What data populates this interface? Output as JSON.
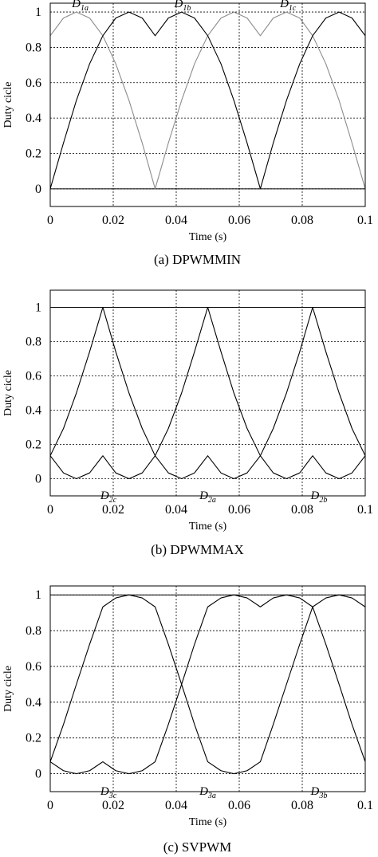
{
  "figure": {
    "ylabel": "Duty cicle",
    "xlabel": "Time (s)"
  },
  "chart_data": [
    {
      "type": "line",
      "caption": "(a) DPWMMIN",
      "xlabel": "Time (s)",
      "ylabel": "Duty cicle",
      "xlim": [
        0,
        0.1
      ],
      "ylim": [
        -0.1,
        1.05
      ],
      "xticks": [
        "0",
        "0.02",
        "0.04",
        "0.06",
        "0.08",
        "0.1"
      ],
      "yticks": [
        "0",
        "0.2",
        "0.4",
        "0.6",
        "0.8",
        "1"
      ],
      "grid": true,
      "reference_line": 0,
      "colors": [
        "#8c8c8c",
        "#000000",
        "#000000"
      ],
      "series": [
        {
          "name": "D1a",
          "sub": "1a",
          "label_at": [
            0.0095,
            1.0
          ],
          "points": [
            [
              0,
              0.866
            ],
            [
              0.0042,
              0.966
            ],
            [
              0.0083,
              1.0
            ],
            [
              0.0125,
              0.966
            ],
            [
              0.0167,
              0.866
            ],
            [
              0.0208,
              0.707
            ],
            [
              0.025,
              0.5
            ],
            [
              0.0292,
              0.259
            ],
            [
              0.0333,
              0.0
            ],
            [
              0.0375,
              0.259
            ],
            [
              0.0417,
              0.5
            ],
            [
              0.0458,
              0.707
            ],
            [
              0.05,
              0.866
            ],
            [
              0.0542,
              0.966
            ],
            [
              0.0583,
              1.0
            ],
            [
              0.0625,
              0.966
            ],
            [
              0.0667,
              0.866
            ],
            [
              0.0708,
              0.966
            ],
            [
              0.075,
              1.0
            ],
            [
              0.0792,
              0.966
            ],
            [
              0.0833,
              0.866
            ],
            [
              0.0875,
              0.707
            ],
            [
              0.0917,
              0.5
            ],
            [
              0.0958,
              0.259
            ],
            [
              0.1,
              0.0
            ]
          ]
        },
        {
          "name": "D1b",
          "sub": "1b",
          "label_at": [
            0.042,
            1.0
          ],
          "points": [
            [
              0,
              0.0
            ],
            [
              0.0042,
              0.259
            ],
            [
              0.0083,
              0.5
            ],
            [
              0.0125,
              0.707
            ],
            [
              0.0167,
              0.866
            ],
            [
              0.0208,
              0.966
            ],
            [
              0.025,
              1.0
            ],
            [
              0.0292,
              0.966
            ],
            [
              0.0333,
              0.866
            ],
            [
              0.0375,
              0.966
            ],
            [
              0.0417,
              1.0
            ],
            [
              0.0458,
              0.966
            ],
            [
              0.05,
              0.866
            ],
            [
              0.0542,
              0.707
            ],
            [
              0.0583,
              0.5
            ],
            [
              0.0625,
              0.259
            ],
            [
              0.0667,
              0.0
            ],
            [
              0.0708,
              0.259
            ],
            [
              0.075,
              0.5
            ],
            [
              0.0792,
              0.707
            ],
            [
              0.0833,
              0.866
            ],
            [
              0.0875,
              0.966
            ],
            [
              0.0917,
              1.0
            ],
            [
              0.0958,
              0.966
            ],
            [
              0.1,
              0.866
            ]
          ]
        },
        {
          "name": "D1c",
          "sub": "1c",
          "label_at": [
            0.0755,
            1.0
          ],
          "points": []
        }
      ]
    },
    {
      "type": "line",
      "caption": "(b) DPWMMAX",
      "xlabel": "Time (s)",
      "ylabel": "Duty cicle",
      "xlim": [
        0,
        0.1
      ],
      "ylim": [
        -0.1,
        1.1
      ],
      "xticks": [
        "0",
        "0.02",
        "0.04",
        "0.06",
        "0.08",
        "0.1"
      ],
      "yticks": [
        "0",
        "0.2",
        "0.4",
        "0.6",
        "0.8",
        "1"
      ],
      "grid": true,
      "reference_line": 1,
      "colors": [
        "#000000",
        "#000000",
        "#000000"
      ],
      "series": [
        {
          "name": "D2a",
          "sub": "2a",
          "label_at": [
            0.05,
            -0.1
          ],
          "points": [
            [
              0,
              0.134
            ],
            [
              0.0042,
              0.034
            ],
            [
              0.0083,
              0.0
            ],
            [
              0.0125,
              0.034
            ],
            [
              0.0167,
              0.134
            ],
            [
              0.0208,
              0.034
            ],
            [
              0.025,
              0.0
            ],
            [
              0.0292,
              0.034
            ],
            [
              0.0333,
              0.134
            ],
            [
              0.0375,
              0.293
            ],
            [
              0.0417,
              0.5
            ],
            [
              0.0458,
              0.741
            ],
            [
              0.05,
              1.0
            ],
            [
              0.0542,
              0.741
            ],
            [
              0.0583,
              0.5
            ],
            [
              0.0625,
              0.293
            ],
            [
              0.0667,
              0.134
            ],
            [
              0.0708,
              0.034
            ],
            [
              0.075,
              0.0
            ],
            [
              0.0792,
              0.034
            ],
            [
              0.0833,
              0.134
            ],
            [
              0.0875,
              0.034
            ],
            [
              0.0917,
              0.0
            ],
            [
              0.0958,
              0.034
            ],
            [
              0.1,
              0.134
            ]
          ]
        },
        {
          "name": "D2b",
          "sub": "2b",
          "label_at": [
            0.0853,
            -0.1
          ],
          "points": [
            [
              0,
              0.134
            ],
            [
              0.0042,
              0.293
            ],
            [
              0.0083,
              0.5
            ],
            [
              0.0125,
              0.741
            ],
            [
              0.0167,
              1.0
            ],
            [
              0.0208,
              0.741
            ],
            [
              0.025,
              0.5
            ],
            [
              0.0292,
              0.293
            ],
            [
              0.0333,
              0.134
            ],
            [
              0.0375,
              0.034
            ],
            [
              0.0417,
              0.0
            ],
            [
              0.0458,
              0.034
            ],
            [
              0.05,
              0.134
            ],
            [
              0.0542,
              0.034
            ],
            [
              0.0583,
              0.0
            ],
            [
              0.0625,
              0.034
            ],
            [
              0.0667,
              0.134
            ],
            [
              0.0708,
              0.293
            ],
            [
              0.075,
              0.5
            ],
            [
              0.0792,
              0.741
            ],
            [
              0.0833,
              1.0
            ],
            [
              0.0875,
              0.741
            ],
            [
              0.0917,
              0.5
            ],
            [
              0.0958,
              0.293
            ],
            [
              0.1,
              0.134
            ]
          ]
        },
        {
          "name": "D2c",
          "sub": "2c",
          "label_at": [
            0.0185,
            -0.1
          ],
          "points": []
        }
      ]
    },
    {
      "type": "line",
      "caption": "(c) SVPWM",
      "xlabel": "Time (s)",
      "ylabel": "Duty cicle",
      "xlim": [
        0,
        0.1
      ],
      "ylim": [
        -0.1,
        1.05
      ],
      "xticks": [
        "0",
        "0.02",
        "0.04",
        "0.06",
        "0.08",
        "0.1"
      ],
      "yticks": [
        "0",
        "0.2",
        "0.4",
        "0.6",
        "0.8",
        "1"
      ],
      "grid": true,
      "reference_line": 1,
      "colors": [
        "#000000",
        "#000000",
        "#000000"
      ],
      "series": [
        {
          "name": "D3a",
          "sub": "3a",
          "label_at": [
            0.05,
            -0.1
          ],
          "points": [
            [
              0,
              0.067
            ],
            [
              0.0042,
              0.017
            ],
            [
              0.0083,
              0.0
            ],
            [
              0.0125,
              0.017
            ],
            [
              0.0167,
              0.067
            ],
            [
              0.0208,
              0.017
            ],
            [
              0.025,
              0.0
            ],
            [
              0.0292,
              0.017
            ],
            [
              0.0333,
              0.067
            ],
            [
              0.0375,
              0.276
            ],
            [
              0.0417,
              0.5
            ],
            [
              0.0458,
              0.724
            ],
            [
              0.05,
              0.933
            ],
            [
              0.0542,
              0.983
            ],
            [
              0.0583,
              1.0
            ],
            [
              0.0625,
              0.983
            ],
            [
              0.0667,
              0.933
            ],
            [
              0.0708,
              0.983
            ],
            [
              0.075,
              1.0
            ],
            [
              0.0792,
              0.983
            ],
            [
              0.0833,
              0.933
            ],
            [
              0.0875,
              0.724
            ],
            [
              0.0917,
              0.5
            ],
            [
              0.0958,
              0.276
            ],
            [
              0.1,
              0.067
            ]
          ]
        },
        {
          "name": "D3b",
          "sub": "3b",
          "label_at": [
            0.0853,
            -0.1
          ],
          "points": [
            [
              0,
              0.067
            ],
            [
              0.0042,
              0.276
            ],
            [
              0.0083,
              0.5
            ],
            [
              0.0125,
              0.724
            ],
            [
              0.0167,
              0.933
            ],
            [
              0.0208,
              0.983
            ],
            [
              0.025,
              1.0
            ],
            [
              0.0292,
              0.983
            ],
            [
              0.0333,
              0.933
            ],
            [
              0.0375,
              0.724
            ],
            [
              0.0417,
              0.5
            ],
            [
              0.0458,
              0.276
            ],
            [
              0.05,
              0.067
            ],
            [
              0.0542,
              0.017
            ],
            [
              0.0583,
              0.0
            ],
            [
              0.0625,
              0.017
            ],
            [
              0.0667,
              0.067
            ],
            [
              0.0708,
              0.276
            ],
            [
              0.075,
              0.5
            ],
            [
              0.0792,
              0.724
            ],
            [
              0.0833,
              0.933
            ],
            [
              0.0875,
              0.983
            ],
            [
              0.0917,
              1.0
            ],
            [
              0.0958,
              0.983
            ],
            [
              0.1,
              0.933
            ]
          ]
        },
        {
          "name": "D3c",
          "sub": "3c",
          "label_at": [
            0.0185,
            -0.1
          ],
          "points": []
        }
      ]
    }
  ]
}
